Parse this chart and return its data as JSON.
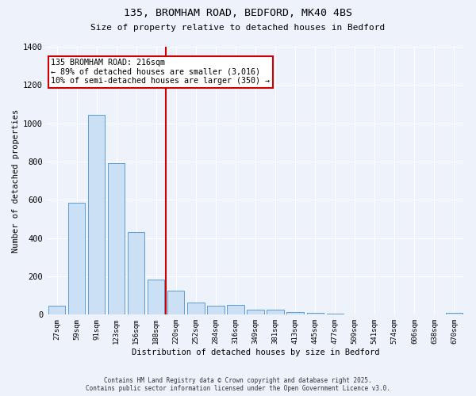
{
  "title_line1": "135, BROMHAM ROAD, BEDFORD, MK40 4BS",
  "title_line2": "Size of property relative to detached houses in Bedford",
  "xlabel": "Distribution of detached houses by size in Bedford",
  "ylabel": "Number of detached properties",
  "categories": [
    "27sqm",
    "59sqm",
    "91sqm",
    "123sqm",
    "156sqm",
    "188sqm",
    "220sqm",
    "252sqm",
    "284sqm",
    "316sqm",
    "349sqm",
    "381sqm",
    "413sqm",
    "445sqm",
    "477sqm",
    "509sqm",
    "541sqm",
    "574sqm",
    "606sqm",
    "638sqm",
    "670sqm"
  ],
  "values": [
    45,
    585,
    1045,
    790,
    430,
    185,
    125,
    65,
    45,
    50,
    25,
    25,
    15,
    10,
    5,
    0,
    0,
    0,
    0,
    0,
    10
  ],
  "bar_color": "#cce0f5",
  "bar_edge_color": "#5b9bd5",
  "vline_index": 5.5,
  "vline_color": "#cc0000",
  "annotation_text": "135 BROMHAM ROAD: 216sqm\n← 89% of detached houses are smaller (3,016)\n10% of semi-detached houses are larger (350) →",
  "annotation_box_color": "#ffffff",
  "annotation_box_edge": "#cc0000",
  "ylim": [
    0,
    1400
  ],
  "yticks": [
    0,
    200,
    400,
    600,
    800,
    1000,
    1200,
    1400
  ],
  "background_color": "#eef2fb",
  "grid_color": "#ffffff",
  "footer_line1": "Contains HM Land Registry data © Crown copyright and database right 2025.",
  "footer_line2": "Contains public sector information licensed under the Open Government Licence v3.0."
}
